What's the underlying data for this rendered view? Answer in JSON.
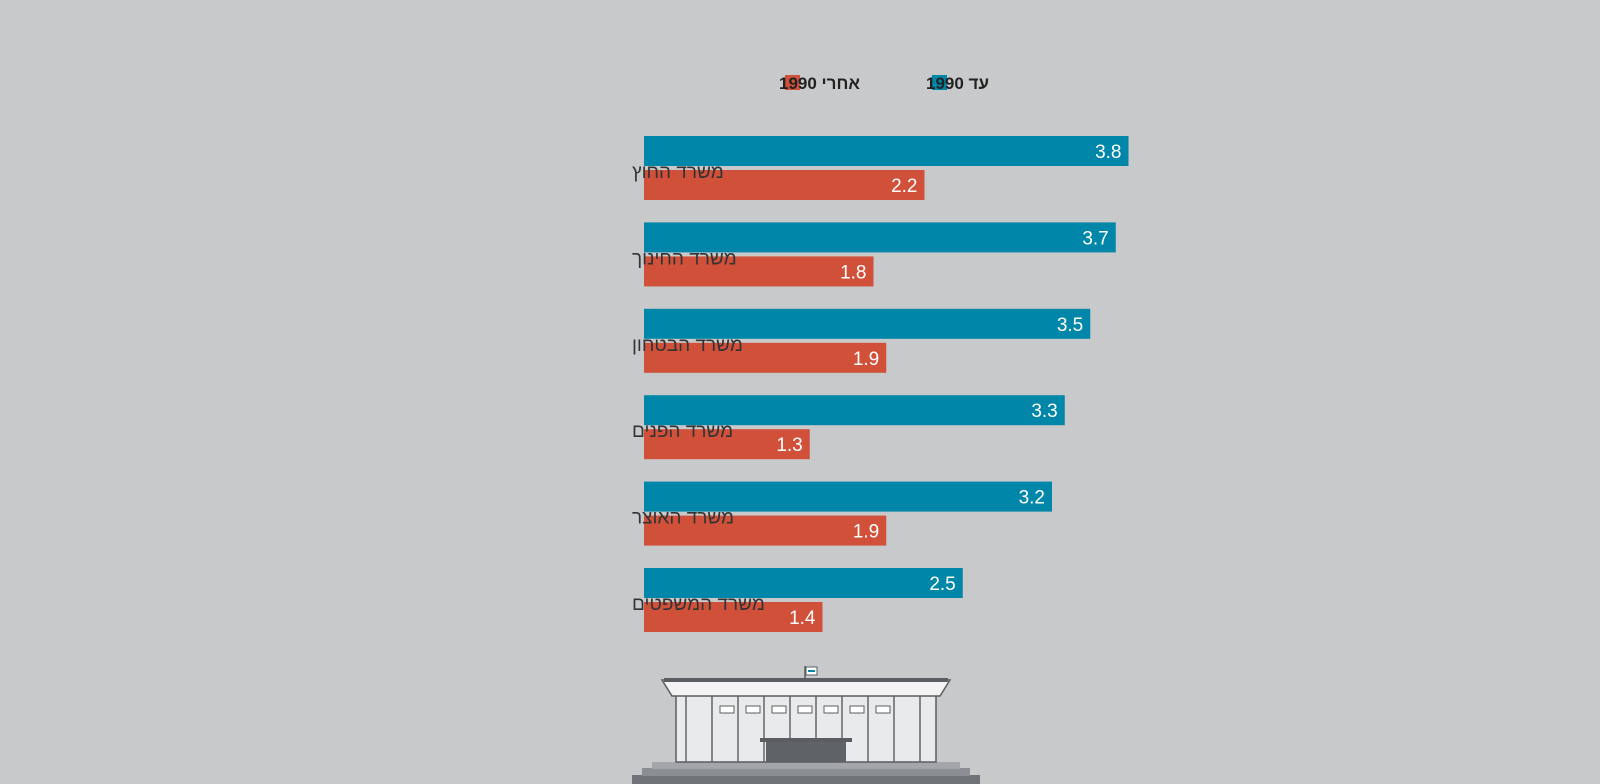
{
  "colors": {
    "background": "#c8c9cb",
    "before_1990": "#0086a8",
    "after_1990": "#d0503a"
  },
  "legend": {
    "position": "top-center",
    "items": [
      {
        "label": "עד 1990",
        "color": "#0086a8"
      },
      {
        "label": "אחרי 1990",
        "color": "#d0503a"
      }
    ]
  },
  "illustration": {
    "icon": "knesset-building-icon"
  },
  "chart_data": {
    "type": "bar",
    "orientation": "horizontal",
    "categories": [
      "משרד החוץ",
      "משרד החינוך",
      "משרד הבטחון",
      "משרד הפנים",
      "משרד האוצר",
      "משרד המשפטים"
    ],
    "series": [
      {
        "name": "עד 1990",
        "color": "#0086a8",
        "values": [
          3.8,
          3.7,
          3.5,
          3.3,
          3.2,
          2.5
        ],
        "labels": [
          "3.8",
          "3.7",
          "3.5",
          "3.3",
          "3.2",
          "2.5"
        ]
      },
      {
        "name": "אחרי 1990",
        "color": "#d0503a",
        "values": [
          2.2,
          1.8,
          1.9,
          1.3,
          1.9,
          1.4
        ],
        "labels": [
          "2.2",
          "1.8",
          "1.9",
          "1.3",
          "1.9",
          "1.4"
        ]
      }
    ],
    "xlim": [
      0,
      4
    ],
    "grid": false,
    "title": "",
    "xlabel": "",
    "ylabel": ""
  }
}
